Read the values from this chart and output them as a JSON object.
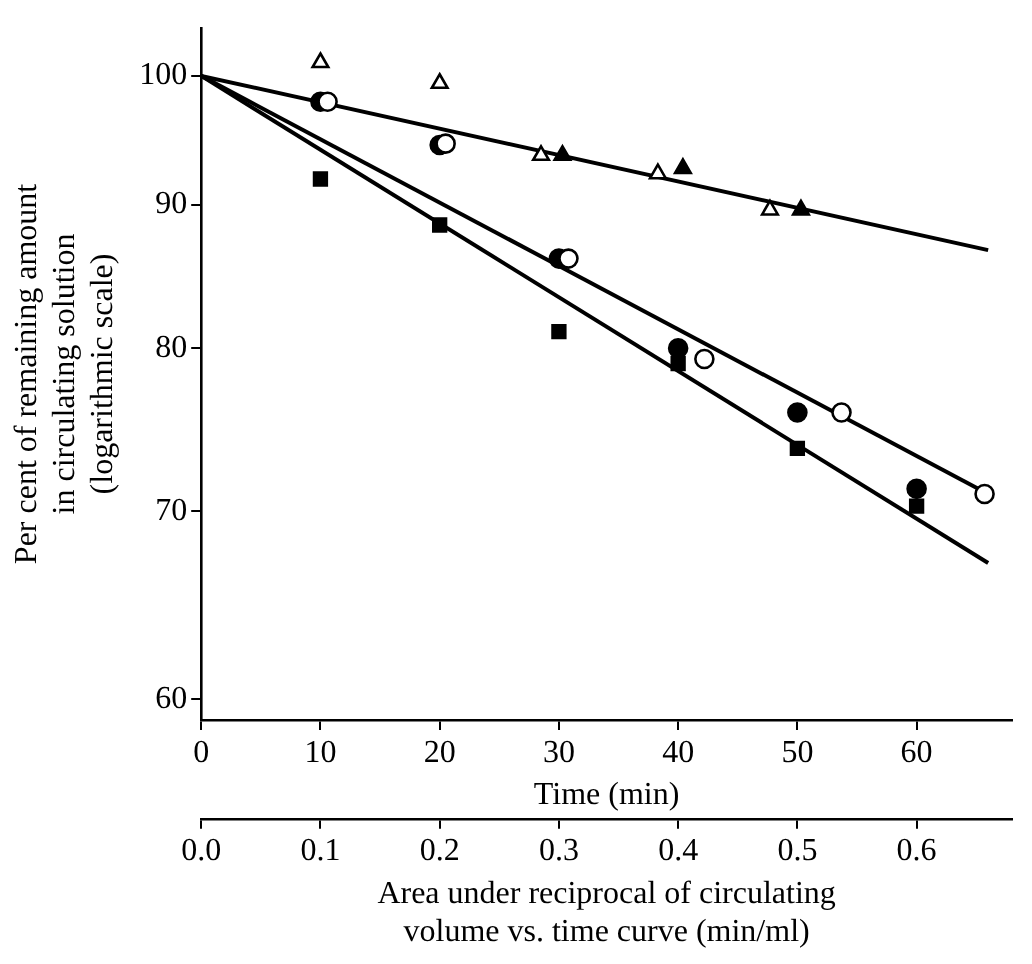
{
  "chart_data": {
    "type": "scatter",
    "xlabel": "Time (min)",
    "ylabel": "Per cent of remaining amount\nin circulating solution\n(logarithmic scale)",
    "x2label": "Area under reciprocal of circulating\nvolume vs. time curve (min/ml)",
    "xlim": [
      0,
      68
    ],
    "xticks": [
      0,
      10,
      20,
      30,
      40,
      50,
      60
    ],
    "ylim": [
      59,
      104
    ],
    "yticks": [
      60,
      70,
      80,
      90,
      100
    ],
    "x2lim": [
      0,
      0.68
    ],
    "x2ticks": [
      {
        "value": 0,
        "label": "0.0"
      },
      0.1,
      0.2,
      0.3,
      0.4,
      0.5,
      0.6
    ],
    "log": "y",
    "grid": false,
    "legend": false,
    "series": [
      {
        "marker": "triangle",
        "color": "#ffffff",
        "x": [
          10,
          20,
          28.5,
          38.3,
          47.7
        ],
        "values": [
          101.1,
          99.4,
          93.7,
          92.3,
          89.6
        ]
      },
      {
        "marker": "triangle",
        "color": "#000000",
        "x": [
          30.3,
          40.4,
          50.3
        ],
        "values": [
          93.7,
          92.7,
          89.6
        ]
      },
      {
        "marker": "circle",
        "color": "#000000",
        "x": [
          10,
          20,
          30,
          40,
          50,
          60
        ],
        "values": [
          97.9,
          94.5,
          86.1,
          80,
          75.9,
          71.3
        ]
      },
      {
        "marker": "circle",
        "color": "#ffffff",
        "x": [
          10.6,
          20.5,
          30.8,
          42.2,
          53.7,
          65.7
        ],
        "values": [
          97.9,
          94.6,
          86.1,
          79.3,
          75.9,
          71
        ]
      },
      {
        "marker": "square",
        "color": "#000000",
        "x": [
          10,
          20,
          30,
          40,
          50,
          60
        ],
        "values": [
          91.9,
          88.5,
          81.1,
          79,
          73.7,
          70.3
        ]
      },
      {
        "type": "line",
        "marker": "none",
        "line_style": "solid",
        "color": "#000000",
        "x": [
          0,
          66
        ],
        "values": [
          100,
          86.7
        ]
      },
      {
        "type": "line",
        "marker": "none",
        "line_style": "solid",
        "color": "#000000",
        "x": [
          0,
          66
        ],
        "values": [
          100,
          71
        ]
      },
      {
        "type": "line",
        "marker": "none",
        "line_style": "solid",
        "color": "#000000",
        "x": [
          0,
          66
        ],
        "values": [
          100,
          67.1
        ]
      }
    ]
  }
}
